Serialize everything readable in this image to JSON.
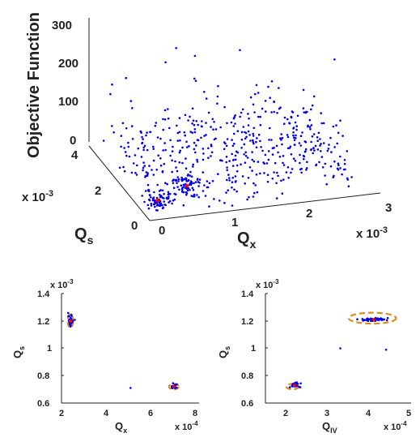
{
  "colors": {
    "points": "#0000ee",
    "optimum": "#ff0000",
    "ellipse": "#e08a1e",
    "axis": "#222222"
  },
  "chart_data": [
    {
      "type": "scatter",
      "name": "top-3d-scatter",
      "xlabel": "Q",
      "xlabel_sub": "x",
      "ylabel": "Q",
      "ylabel_sub": "s",
      "zlabel": "Objective Function",
      "x_exponent": "x 10",
      "x_exponent_power": "-3",
      "y_exponent": "x 10",
      "y_exponent_power": "-3",
      "x_ticks": [
        "0",
        "1",
        "2",
        "3"
      ],
      "y_ticks": [
        "0",
        "2",
        "4"
      ],
      "z_ticks": [
        "0",
        "100",
        "200",
        "300"
      ],
      "xlim": [
        0,
        0.003
      ],
      "ylim": [
        0,
        0.004
      ],
      "zlim": [
        0,
        300
      ],
      "optimum_points": [
        [
          0.00072,
          0.0012,
          14
        ],
        [
          0.00024,
          0.0007,
          12
        ]
      ]
    },
    {
      "type": "scatter",
      "name": "bottom-left-scatter",
      "xlabel": "Q",
      "xlabel_sub": "x",
      "ylabel": "Q",
      "ylabel_sub": "s",
      "x_exponent": "x 10",
      "x_exponent_power": "-4",
      "y_exponent": "x 10",
      "y_exponent_power": "-3",
      "x_ticks": [
        "2",
        "4",
        "6",
        "8"
      ],
      "y_ticks": [
        "0.6",
        "0.8",
        "1",
        "1.2",
        "1.4"
      ],
      "xlim": [
        2,
        8
      ],
      "ylim": [
        0.6,
        1.4
      ],
      "clusters": [
        {
          "center": [
            2.4,
            1.2
          ],
          "spread": [
            0.1,
            0.04
          ],
          "count": 40
        },
        {
          "center": [
            7.05,
            0.72
          ],
          "spread": [
            0.15,
            0.015
          ],
          "count": 30
        }
      ],
      "outliers": [
        [
          5.1,
          0.71
        ]
      ],
      "ellipses": [
        {
          "center": [
            2.4,
            1.2
          ],
          "rx": 0.12,
          "ry": 0.05
        },
        {
          "center": [
            7.05,
            0.72
          ],
          "rx": 0.22,
          "ry": 0.02
        }
      ]
    },
    {
      "type": "scatter",
      "name": "bottom-right-scatter",
      "xlabel": "Q",
      "xlabel_sub": "IV",
      "ylabel": "Q",
      "ylabel_sub": "s",
      "x_exponent": "x 10",
      "x_exponent_power": "-4",
      "y_exponent": "x 10",
      "y_exponent_power": "-3",
      "x_ticks": [
        "2",
        "3",
        "4",
        "5"
      ],
      "y_ticks": [
        "0.6",
        "0.8",
        "1",
        "1.2",
        "1.4"
      ],
      "xlim": [
        1.5,
        5
      ],
      "ylim": [
        0.6,
        1.4
      ],
      "clusters": [
        {
          "center": [
            2.2,
            0.73
          ],
          "spread": [
            0.12,
            0.02
          ],
          "count": 35
        },
        {
          "center": [
            4.1,
            1.21
          ],
          "spread": [
            0.35,
            0.012
          ],
          "count": 60
        }
      ],
      "outliers": [
        [
          4.4,
          0.99
        ],
        [
          3.3,
          1.0
        ]
      ],
      "ellipses": [
        {
          "center": [
            2.15,
            0.72
          ],
          "rx": 0.15,
          "ry": 0.02
        },
        {
          "center": [
            4.07,
            1.22
          ],
          "rx": 0.57,
          "ry": 0.04
        }
      ]
    }
  ]
}
